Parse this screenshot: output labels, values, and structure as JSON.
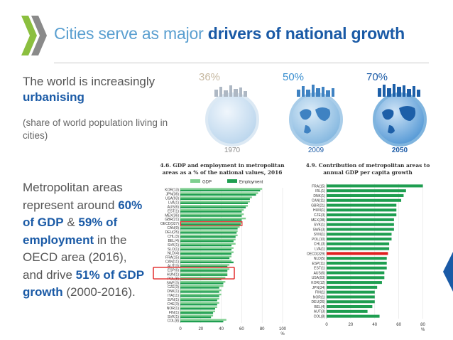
{
  "title": {
    "prefix": "Cities serve as major ",
    "bold": "drivers of national growth"
  },
  "urbanising": {
    "line1": "The world is increasingly ",
    "bold": "urbanising",
    "note": "(share of world population living in cities)"
  },
  "globes": [
    {
      "pct": "36%",
      "year": "1970"
    },
    {
      "pct": "50%",
      "year": "2009"
    },
    {
      "pct": "70%",
      "year": "2050"
    }
  ],
  "metro": {
    "t1": "Metropolitan areas represent around ",
    "b1": "60% of GDP",
    "t2": " & ",
    "b2": "59% of employment",
    "t3": " in the OECD area (2016), and drive ",
    "b3": "51% of GDP growth",
    "t4": " (2000-2016)."
  },
  "colors": {
    "gdp": "#7fcf8f",
    "employment": "#1e9e50",
    "highlight": "#e02020",
    "accent": "#1a5aa6"
  },
  "chart_data": [
    {
      "type": "bar",
      "orientation": "horizontal",
      "title": "4.6. GDP and employment in metropolitan areas as a % of the national values, 2016",
      "legend": [
        "GDP",
        "Employment"
      ],
      "legend_position": "top",
      "categories": [
        "KOR(13)",
        "JPN(36)",
        "USA(93)",
        "LVA(1)",
        "AUS(6)",
        "EST(1)",
        "MEX(36)",
        "GBR(21)",
        "OECD(327)",
        "CAN(9)",
        "DEU(25)",
        "CHL(3)",
        "BEL(4)",
        "SVK(1)",
        "SLO(1)",
        "NLD(4)",
        "FRA(15)",
        "CAN(11)",
        "AUT(3)",
        "ESP(6)",
        "HUN(1)",
        "POL(8)",
        "SWE(3)",
        "CZE(3)",
        "DNK(1)",
        "ITA(11)",
        "SVN(1)",
        "CHE(3)",
        "NOR(1)",
        "FIN(1)",
        "SVK(1)",
        "COL(8)"
      ],
      "series": [
        {
          "name": "GDP",
          "values": [
            80,
            76,
            70,
            68,
            66,
            62,
            62,
            64,
            60,
            58,
            56,
            56,
            54,
            54,
            52,
            52,
            50,
            50,
            48,
            48,
            46,
            44,
            44,
            42,
            40,
            40,
            38,
            38,
            36,
            34,
            32,
            45
          ]
        },
        {
          "name": "Employment",
          "values": [
            78,
            74,
            68,
            66,
            64,
            60,
            60,
            60,
            59,
            56,
            55,
            54,
            52,
            50,
            50,
            50,
            48,
            52,
            46,
            46,
            46,
            40,
            42,
            38,
            38,
            38,
            36,
            36,
            34,
            32,
            30,
            42
          ]
        }
      ],
      "highlight_category": "OECD(327)",
      "xticks": [
        "0",
        "20",
        "40",
        "60",
        "80",
        "100"
      ],
      "xlabel": "%",
      "xlim": [
        0,
        100
      ]
    },
    {
      "type": "bar",
      "orientation": "horizontal",
      "title": "4.9. Contribution of metropolitan areas to annual GDP per capita growth",
      "categories": [
        "FRA(15)",
        "IRL(1)",
        "DNK(1)",
        "CAN(11)",
        "GBR(21)",
        "HUN(1)",
        "CZE(3)",
        "MEX(38)",
        "SVK(1)",
        "SWE(3)",
        "SVN(1)",
        "POL(10)",
        "CHL(3)",
        "LVA(1)",
        "OECD(329)",
        "NLD(5)",
        "ESP(11)",
        "EST(1)",
        "AUS(6)",
        "USA(93)",
        "KOR(12)",
        "JPN(34)",
        "FIN(1)",
        "NOR(1)",
        "DEU(26)",
        "BEL(4)",
        "AUT(3)",
        "COL(8)"
      ],
      "values": [
        80,
        66,
        64,
        62,
        58,
        58,
        58,
        56,
        56,
        56,
        54,
        54,
        52,
        52,
        51,
        50,
        50,
        50,
        48,
        48,
        46,
        42,
        40,
        40,
        40,
        38,
        34,
        44
      ],
      "highlight_category": "OECD(329)",
      "xticks": [
        "0",
        "20",
        "40",
        "60",
        "80"
      ],
      "xlabel": "%",
      "xlim": [
        0,
        85
      ]
    }
  ]
}
